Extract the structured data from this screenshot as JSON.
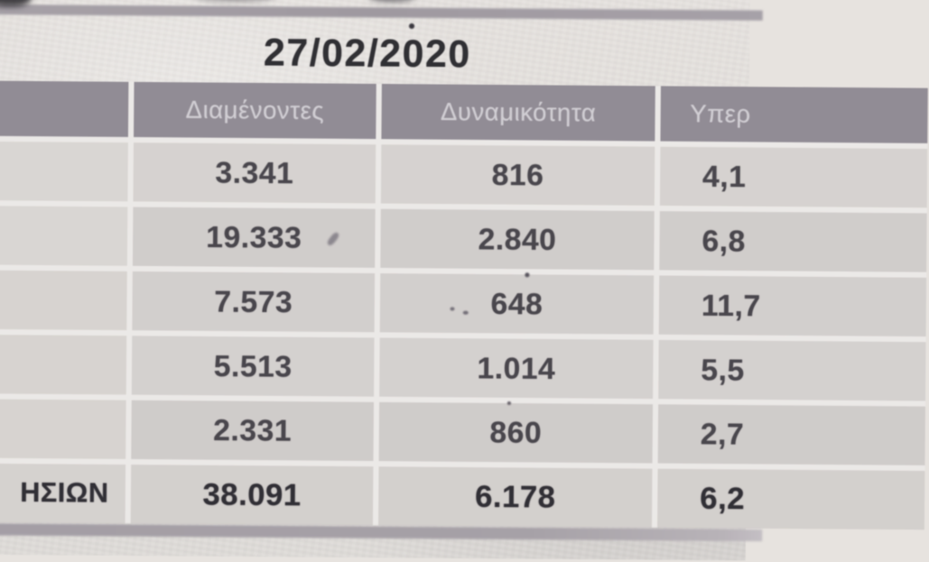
{
  "photo": {
    "date": "27/02/2020"
  },
  "table": {
    "columns": {
      "label": "",
      "residents": "Διαμένοντες",
      "capacity": "Δυναμικότητα",
      "overflow": "Υπερ"
    },
    "rows": [
      {
        "label": "",
        "residents": "3.341",
        "capacity": "816",
        "ratio": "4,1"
      },
      {
        "label": "",
        "residents": "19.333",
        "capacity": "2.840",
        "ratio": "6,8"
      },
      {
        "label": "",
        "residents": "7.573",
        "capacity": "648",
        "ratio": "11,7"
      },
      {
        "label": "",
        "residents": "5.513",
        "capacity": "1.014",
        "ratio": "5,5"
      },
      {
        "label": "",
        "residents": "2.331",
        "capacity": "860",
        "ratio": "2,7"
      }
    ],
    "total": {
      "label": "ΗΣΙΩΝ",
      "residents": "38.091",
      "capacity": "6.178",
      "ratio": "6,2"
    }
  },
  "colors": {
    "page_bg": "#e7e3df",
    "header_bg": "#928c96",
    "header_text": "#d3d0d6",
    "row_bg": "#d5d1cf",
    "gridline": "#efecea",
    "stripe": "#a49ea6",
    "number_text": "#48454c",
    "date_text": "#2e2d32"
  }
}
